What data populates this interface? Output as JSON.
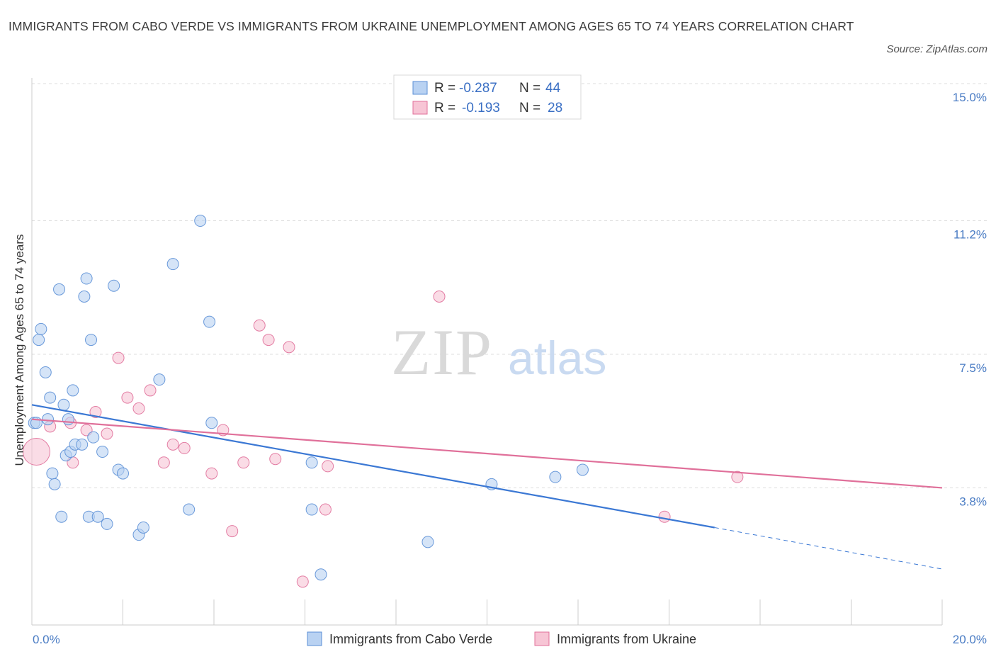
{
  "title": "IMMIGRANTS FROM CABO VERDE VS IMMIGRANTS FROM UKRAINE UNEMPLOYMENT AMONG AGES 65 TO 74 YEARS CORRELATION CHART",
  "source": "Source: ZipAtlas.com",
  "watermark": {
    "zip": "ZIP",
    "atlas": "atlas"
  },
  "chart_data": {
    "type": "scatter",
    "title": "IMMIGRANTS FROM CABO VERDE VS IMMIGRANTS FROM UKRAINE UNEMPLOYMENT AMONG AGES 65 TO 74 YEARS CORRELATION CHART",
    "xlabel": "",
    "ylabel": "Unemployment Among Ages 65 to 74 years",
    "xlim": [
      0,
      20
    ],
    "ylim": [
      0,
      15
    ],
    "x_tick_labels": [
      {
        "value": 0,
        "label": "0.0%"
      },
      {
        "value": 20,
        "label": "20.0%"
      }
    ],
    "y_ticks": [
      {
        "value": 3.8,
        "label": "3.8%"
      },
      {
        "value": 7.5,
        "label": "7.5%"
      },
      {
        "value": 11.2,
        "label": "11.2%"
      },
      {
        "value": 15.0,
        "label": "15.0%"
      }
    ],
    "legend": [
      {
        "r_label": "R =",
        "r": "-0.287",
        "n_label": "N =",
        "n": "44"
      },
      {
        "r_label": "R =",
        "r": "-0.193",
        "n_label": "N =",
        "n": "28"
      }
    ],
    "series": [
      {
        "name": "Immigrants from Cabo Verde",
        "color": "#5b8fd6",
        "fill": "#b9d2f2",
        "points": [
          [
            0.05,
            5.6
          ],
          [
            0.15,
            7.9
          ],
          [
            0.2,
            8.2
          ],
          [
            0.3,
            7.0
          ],
          [
            0.35,
            5.7
          ],
          [
            0.4,
            6.3
          ],
          [
            0.45,
            4.2
          ],
          [
            0.5,
            3.9
          ],
          [
            0.6,
            9.3
          ],
          [
            0.65,
            3.0
          ],
          [
            0.7,
            6.1
          ],
          [
            0.75,
            4.7
          ],
          [
            0.8,
            5.7
          ],
          [
            0.85,
            4.8
          ],
          [
            0.9,
            6.5
          ],
          [
            0.95,
            5.0
          ],
          [
            1.1,
            5.0
          ],
          [
            1.15,
            9.1
          ],
          [
            1.2,
            9.6
          ],
          [
            1.25,
            3.0
          ],
          [
            1.3,
            7.9
          ],
          [
            1.35,
            5.2
          ],
          [
            1.45,
            3.0
          ],
          [
            1.55,
            4.8
          ],
          [
            1.65,
            2.8
          ],
          [
            1.8,
            9.4
          ],
          [
            1.9,
            4.3
          ],
          [
            2.0,
            4.2
          ],
          [
            2.35,
            2.5
          ],
          [
            2.45,
            2.7
          ],
          [
            2.8,
            6.8
          ],
          [
            3.1,
            10.0
          ],
          [
            3.45,
            3.2
          ],
          [
            3.7,
            11.2
          ],
          [
            3.9,
            8.4
          ],
          [
            3.95,
            5.6
          ],
          [
            6.15,
            4.5
          ],
          [
            6.15,
            3.2
          ],
          [
            6.35,
            1.4
          ],
          [
            8.7,
            2.3
          ],
          [
            10.1,
            3.9
          ],
          [
            11.5,
            4.1
          ],
          [
            12.1,
            4.3
          ],
          [
            0.1,
            5.6
          ]
        ],
        "trend": {
          "x0": 0,
          "y0": 6.1,
          "x1": 15.0,
          "y1": 2.7,
          "dash_x1": 20.0,
          "dash_y1": 1.55
        }
      },
      {
        "name": "Immigrants from Ukraine",
        "color": "#e0709a",
        "fill": "#f7c5d5",
        "points": [
          [
            0.1,
            4.8
          ],
          [
            0.4,
            5.5
          ],
          [
            0.85,
            5.6
          ],
          [
            0.9,
            4.5
          ],
          [
            1.2,
            5.4
          ],
          [
            1.4,
            5.9
          ],
          [
            1.65,
            5.3
          ],
          [
            1.9,
            7.4
          ],
          [
            2.1,
            6.3
          ],
          [
            2.35,
            6.0
          ],
          [
            2.6,
            6.5
          ],
          [
            2.9,
            4.5
          ],
          [
            3.1,
            5.0
          ],
          [
            3.35,
            4.9
          ],
          [
            3.95,
            4.2
          ],
          [
            4.2,
            5.4
          ],
          [
            4.4,
            2.6
          ],
          [
            4.65,
            4.5
          ],
          [
            5.0,
            8.3
          ],
          [
            5.2,
            7.9
          ],
          [
            5.35,
            4.6
          ],
          [
            5.65,
            7.7
          ],
          [
            5.95,
            1.2
          ],
          [
            6.45,
            3.2
          ],
          [
            6.5,
            4.4
          ],
          [
            8.95,
            9.1
          ],
          [
            13.9,
            3.0
          ],
          [
            15.5,
            4.1
          ]
        ],
        "trend": {
          "x0": 0,
          "y0": 5.7,
          "x1": 20.0,
          "y1": 3.8
        }
      }
    ]
  }
}
